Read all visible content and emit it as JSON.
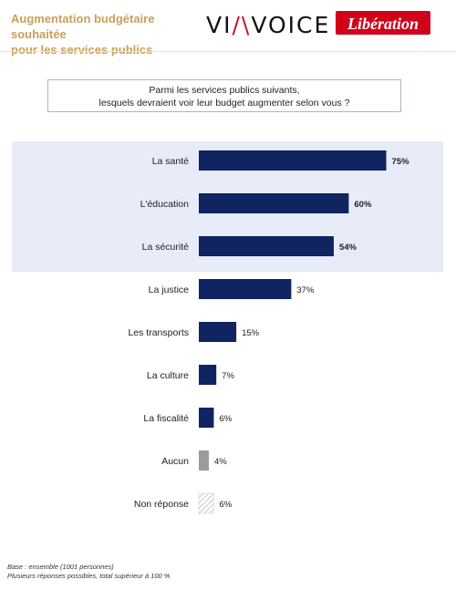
{
  "header": {
    "title_line1": "Augmentation budgétaire souhaitée",
    "title_line2": "pour les services publics",
    "logo_viavoice": "VIAVOICE",
    "logo_liberation": "Libération"
  },
  "question": {
    "line1": "Parmi les services publics suivants,",
    "line2": "lesquels devraient voir leur budget augmenter selon vous ?"
  },
  "chart_data": {
    "type": "bar",
    "orientation": "horizontal",
    "categories": [
      "La santé",
      "L'éducation",
      "La sécurité",
      "La justice",
      "Les transports",
      "La culture",
      "La fiscalité",
      "Aucun",
      "Non réponse"
    ],
    "values": [
      75,
      60,
      54,
      37,
      15,
      7,
      6,
      4,
      6
    ],
    "value_labels": [
      "75%",
      "60%",
      "54%",
      "37%",
      "15%",
      "7%",
      "6%",
      "4%",
      "6%"
    ],
    "styles": [
      "solid",
      "solid",
      "solid",
      "solid",
      "solid",
      "solid",
      "solid",
      "gray",
      "hatched"
    ],
    "bold_labels": [
      true,
      true,
      true,
      false,
      false,
      false,
      false,
      false,
      false
    ],
    "highlighted_categories": [
      "La santé",
      "L'éducation",
      "La sécurité"
    ],
    "colors": {
      "bar": "#0f2460",
      "gray": "#9b9b9b",
      "hatch": "#b8b8b8",
      "highlight": "#e7ecf8"
    },
    "xlim": [
      0,
      100
    ],
    "grid": false
  },
  "footnote": {
    "line1": "Base : ensemble (1001 personnes)",
    "line2": "Plusieurs réponses possibles, total supérieur à 100 %"
  }
}
